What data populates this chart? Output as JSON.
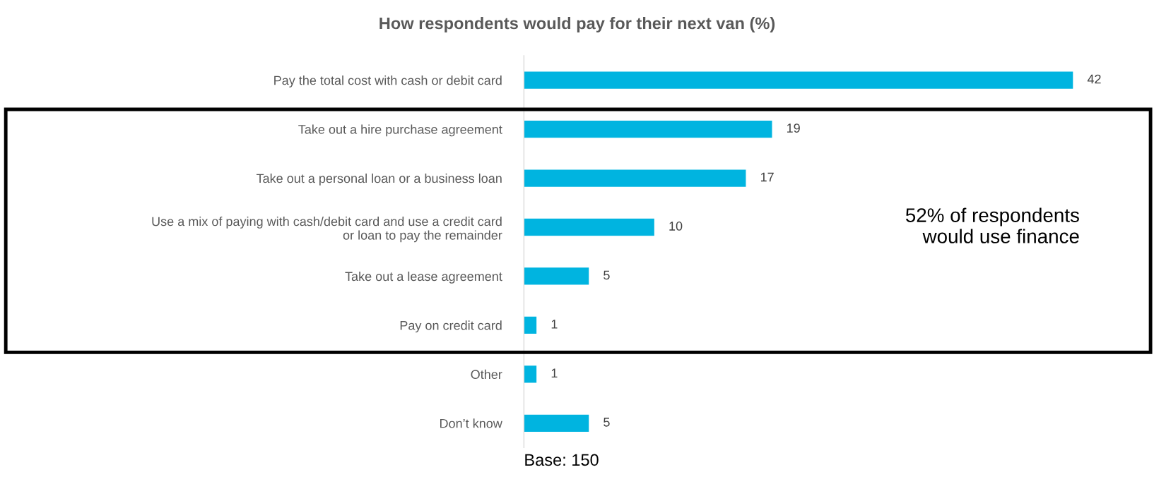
{
  "chart_data": {
    "type": "bar",
    "orientation": "horizontal",
    "title": "How respondents would pay for their next van (%)",
    "categories": [
      "Pay the total cost with cash or debit card",
      "Take out a hire purchase agreement",
      "Take out a personal loan or a business loan",
      "Use a mix of paying with cash/debit card and use a credit card\nor loan to pay the remainder",
      "Take out a lease agreement",
      "Pay on credit card",
      "Other",
      "Don’t know"
    ],
    "values": [
      42,
      19,
      17,
      10,
      5,
      1,
      1,
      5
    ],
    "color": "#00b4e0",
    "data_labels": true,
    "tick_labels": "y",
    "grid": false,
    "legend": false,
    "annotations": [
      "52% of respondents\nwould use finance",
      "Base: 150"
    ]
  }
}
